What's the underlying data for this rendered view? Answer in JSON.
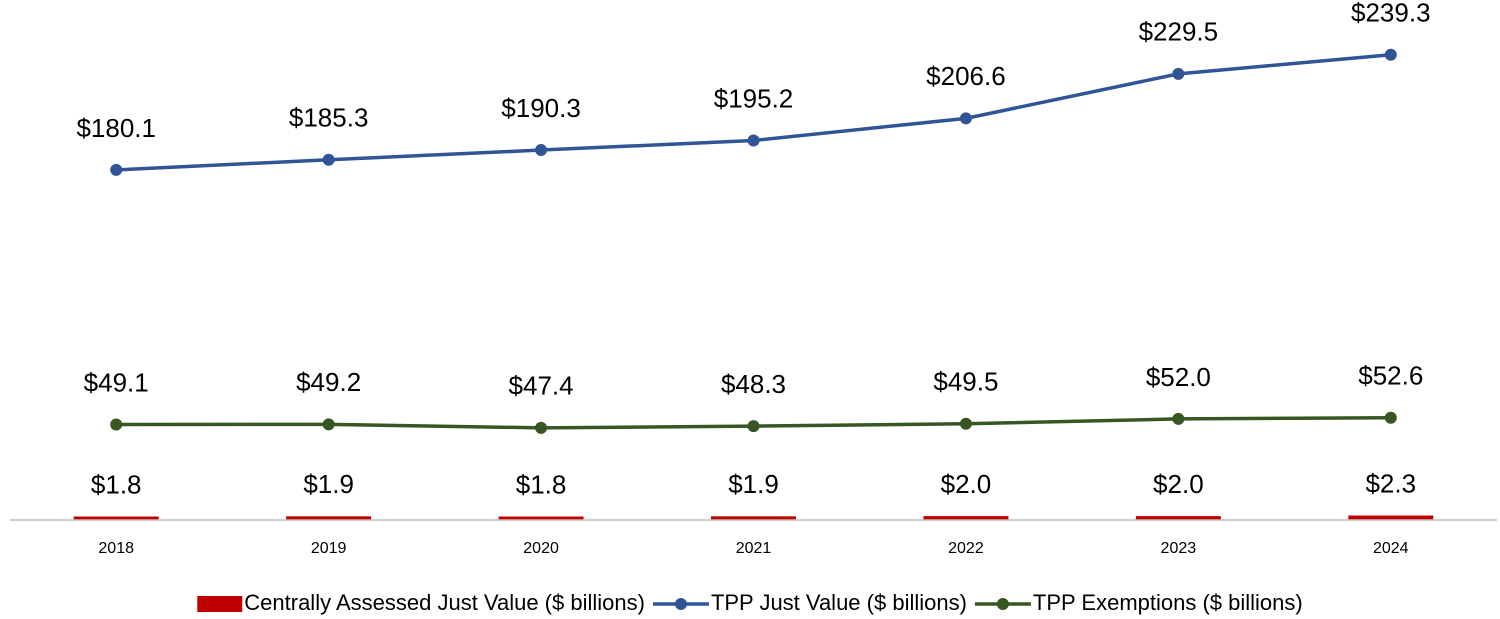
{
  "chart_data": {
    "type": "combo",
    "categories": [
      "2018",
      "2019",
      "2020",
      "2021",
      "2022",
      "2023",
      "2024"
    ],
    "ylim": [
      0,
      250
    ],
    "series": [
      {
        "name": "Centrally Assessed Just Value ($ billions)",
        "type": "bar",
        "color": "#c00000",
        "values": [
          1.8,
          1.9,
          1.8,
          1.9,
          2.0,
          2.0,
          2.3
        ],
        "value_labels": [
          "$1.8",
          "$1.9",
          "$1.8",
          "$1.9",
          "$2.0",
          "$2.0",
          "$2.3"
        ]
      },
      {
        "name": "TPP Just Value ($ billions)",
        "type": "line",
        "color": "#2f5597",
        "values": [
          180.1,
          185.3,
          190.3,
          195.2,
          206.6,
          229.5,
          239.3
        ],
        "value_labels": [
          "$180.1",
          "$185.3",
          "$190.3",
          "$195.2",
          "$206.6",
          "$229.5",
          "$239.3"
        ]
      },
      {
        "name": "TPP Exemptions ($ billions)",
        "type": "line",
        "color": "#375623",
        "values": [
          49.1,
          49.2,
          47.4,
          48.3,
          49.5,
          52.0,
          52.6
        ],
        "value_labels": [
          "$49.1",
          "$49.2",
          "$47.4",
          "$48.3",
          "$49.5",
          "$52.0",
          "$52.6"
        ]
      }
    ]
  }
}
